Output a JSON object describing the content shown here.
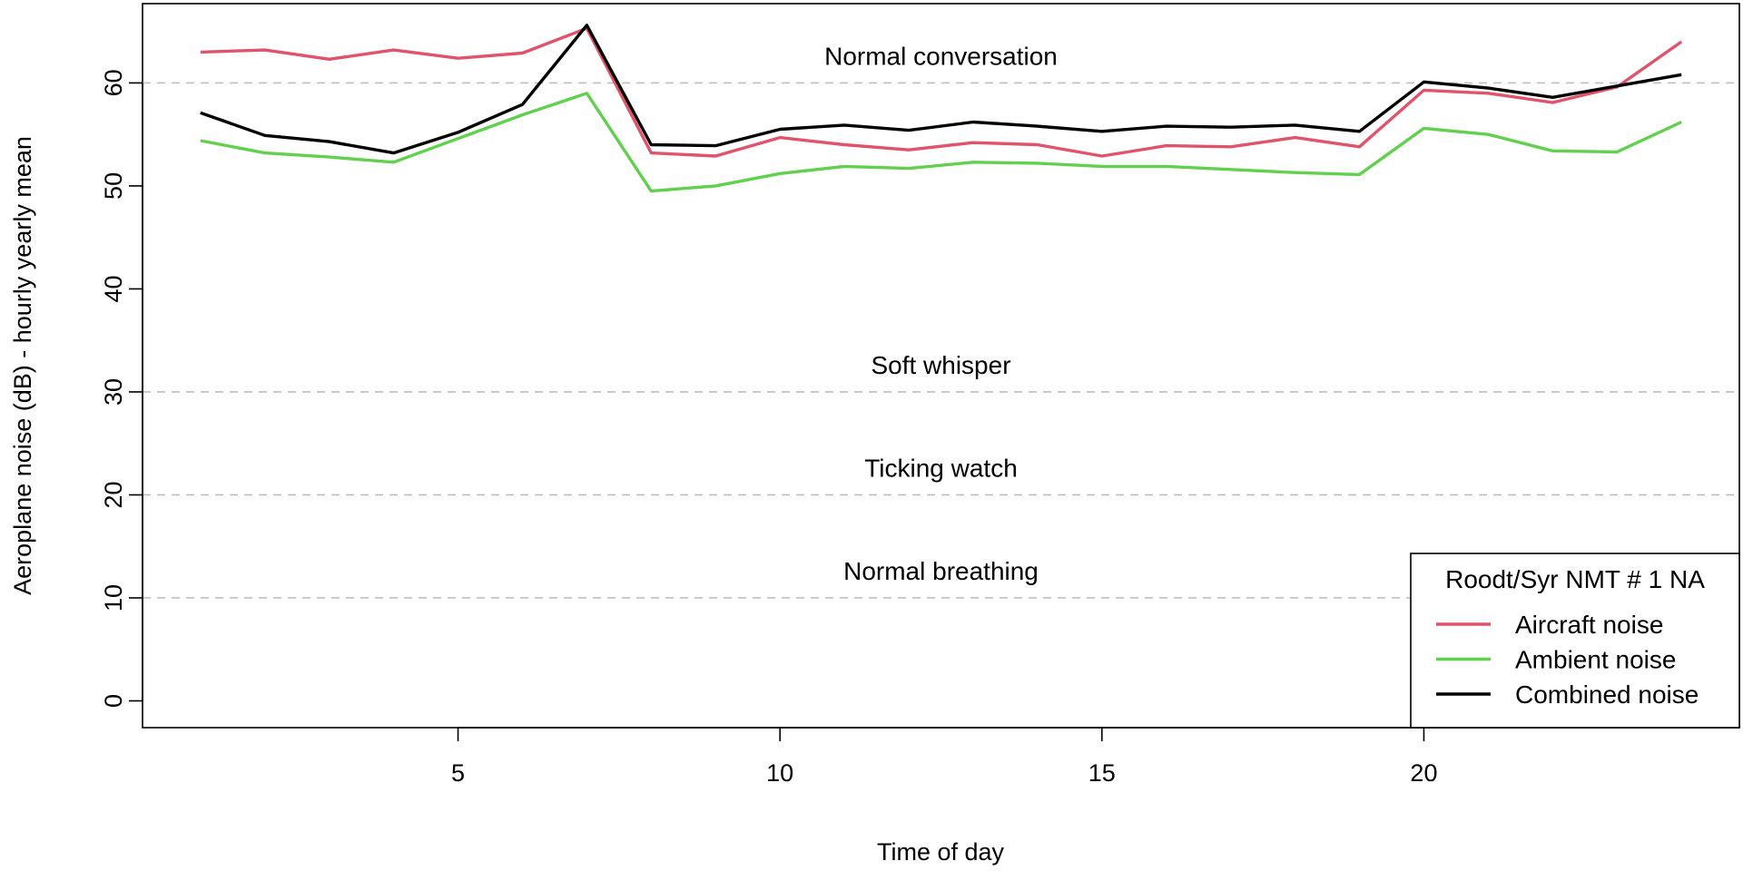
{
  "chart_data": {
    "type": "line",
    "title": "",
    "xlabel": "Time of day",
    "ylabel": "Aeroplane noise (dB) - hourly yearly mean",
    "xlim": [
      0.1,
      24.9
    ],
    "ylim": [
      -2.6,
      67.7
    ],
    "xticks": [
      5,
      10,
      15,
      20
    ],
    "yticks": [
      0,
      10,
      20,
      30,
      40,
      50,
      60
    ],
    "grid": false,
    "x": [
      1,
      2,
      3,
      4,
      5,
      6,
      7,
      8,
      9,
      10,
      11,
      12,
      13,
      14,
      15,
      16,
      17,
      18,
      19,
      20,
      21,
      22,
      23,
      24
    ],
    "series": [
      {
        "name": "Aircraft noise",
        "color": "#df536b",
        "values": [
          63.0,
          63.2,
          62.3,
          63.2,
          62.4,
          62.9,
          65.3,
          53.2,
          52.9,
          54.7,
          54.0,
          53.5,
          54.2,
          54.0,
          52.9,
          53.9,
          53.8,
          54.7,
          53.8,
          59.3,
          59.0,
          58.1,
          59.6,
          64.0
        ]
      },
      {
        "name": "Ambient noise",
        "color": "#61d04f",
        "values": [
          54.4,
          53.2,
          52.8,
          52.3,
          54.6,
          56.9,
          59.0,
          49.5,
          50.0,
          51.2,
          51.9,
          51.7,
          52.3,
          52.2,
          51.9,
          51.9,
          51.6,
          51.3,
          51.1,
          55.6,
          55.0,
          53.4,
          53.3,
          56.2
        ]
      },
      {
        "name": "Combined noise",
        "color": "#000000",
        "values": [
          57.1,
          54.9,
          54.3,
          53.2,
          55.2,
          57.9,
          65.6,
          54.0,
          53.9,
          55.5,
          55.9,
          55.4,
          56.2,
          55.8,
          55.3,
          55.8,
          55.7,
          55.9,
          55.3,
          60.1,
          59.5,
          58.6,
          59.7,
          60.8
        ]
      }
    ],
    "reference_lines": [
      {
        "y": 60,
        "label": "Normal conversation"
      },
      {
        "y": 30,
        "label": "Soft whisper"
      },
      {
        "y": 20,
        "label": "Ticking watch"
      },
      {
        "y": 10,
        "label": "Normal breathing"
      }
    ],
    "reference_color": "#bebebe",
    "legend": {
      "title": "Roodt/Syr NMT # 1 NA",
      "position": "bottom-right"
    }
  }
}
